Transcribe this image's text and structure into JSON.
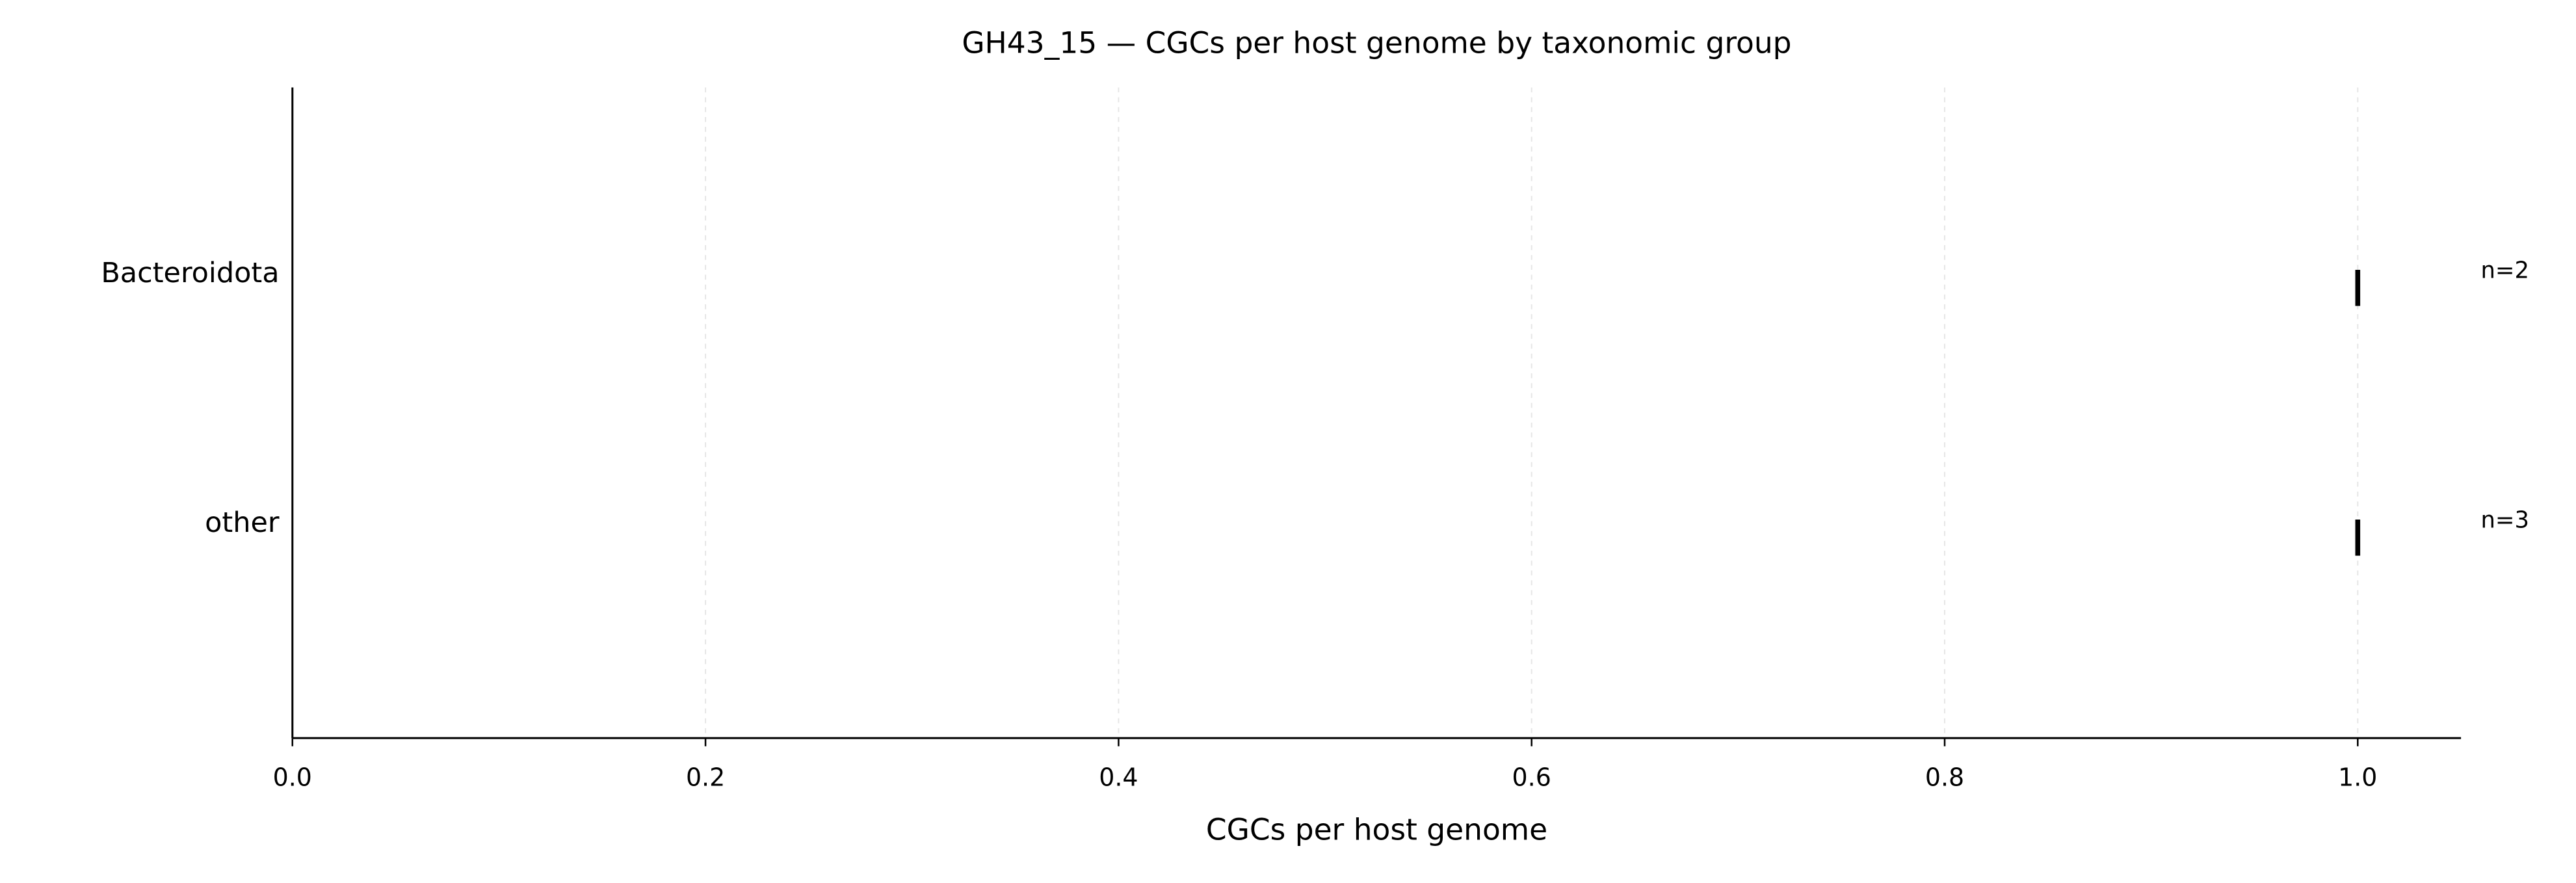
{
  "chart_data": {
    "type": "box",
    "title": "GH43_15 — CGCs per host genome by taxonomic group",
    "xlabel": "CGCs per host genome",
    "categories": [
      "Bacteroidota",
      "other"
    ],
    "values": [
      1,
      1
    ],
    "annotations": [
      "n=2",
      "n=3"
    ],
    "color": "#000000",
    "xlim": [
      0,
      1.05
    ],
    "xticks": [
      {
        "value": 0,
        "label": "0.0"
      },
      0.2,
      0.4,
      0.6,
      0.8,
      {
        "value": 1,
        "label": "1.0"
      }
    ],
    "grid": true
  }
}
